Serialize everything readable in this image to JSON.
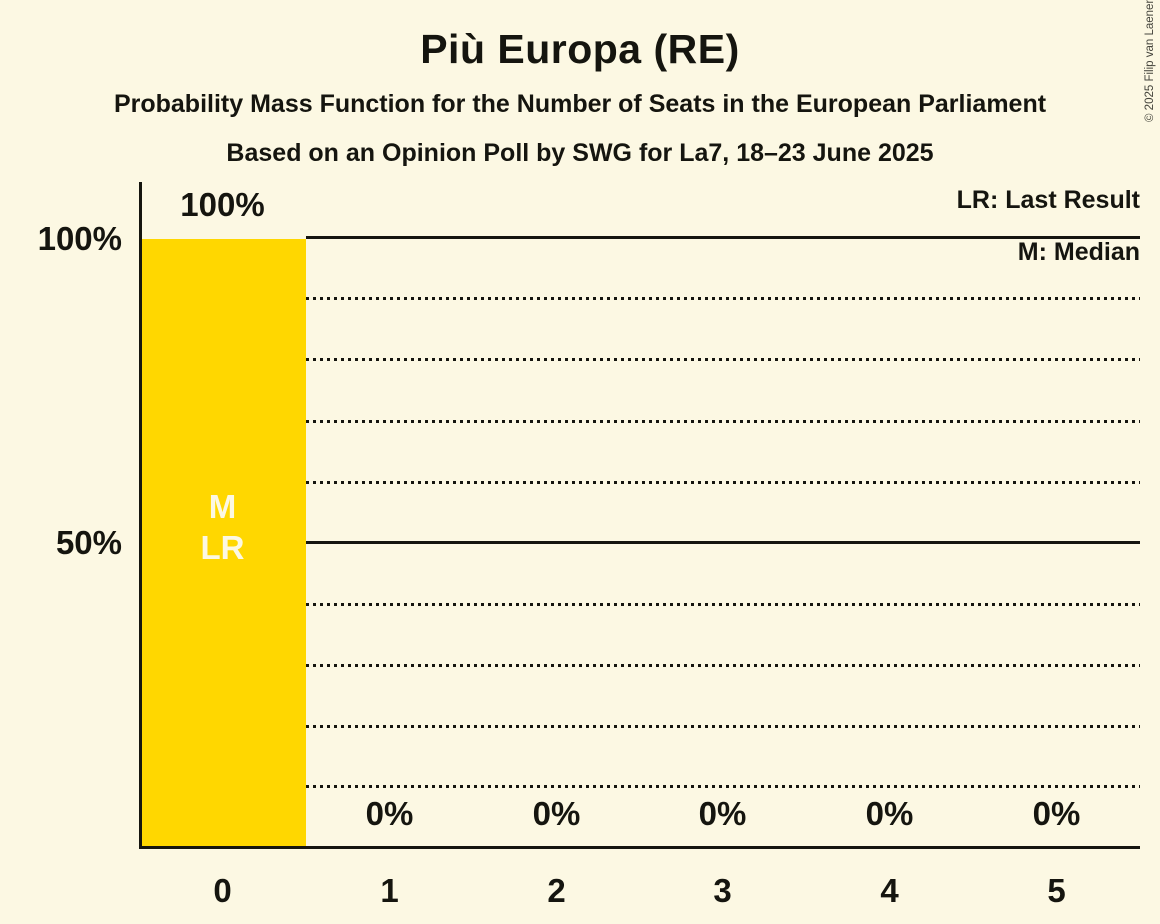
{
  "title": "Più Europa (RE)",
  "subtitle1": "Probability Mass Function for the Number of Seats in the European Parliament",
  "subtitle2": "Based on an Opinion Poll by SWG for La7, 18–23 June 2025",
  "copyright": "© 2025 Filip van Laenen",
  "legend": {
    "last_result": "LR: Last Result",
    "median": "M: Median"
  },
  "y_axis": {
    "label_100": "100%",
    "label_50": "50%"
  },
  "annotations": {
    "median_label": "M",
    "last_result_label": "LR"
  },
  "colors": {
    "background": "#FCF8E3",
    "bar": "#FFD700",
    "line": "#15150F",
    "bar_text": "#FCF8E3"
  },
  "chart_data": {
    "type": "bar",
    "title": "Più Europa (RE)",
    "categories": [
      "0",
      "1",
      "2",
      "3",
      "4",
      "5"
    ],
    "values": [
      100,
      0,
      0,
      0,
      0,
      0
    ],
    "value_labels": [
      "100%",
      "0%",
      "0%",
      "0%",
      "0%",
      "0%"
    ],
    "ylim": [
      0,
      100
    ],
    "ytick_labels": [
      "100%",
      "50%"
    ],
    "solid_gridlines_pct": [
      100,
      50
    ],
    "dotted_gridlines_pct": [
      90,
      80,
      70,
      60,
      40,
      30,
      20,
      10
    ],
    "legend": [
      "LR: Last Result",
      "M: Median"
    ],
    "median_category": "0",
    "last_result_category": "0",
    "bar_color": "#FFD700",
    "grid": "dotted-horizontal"
  }
}
